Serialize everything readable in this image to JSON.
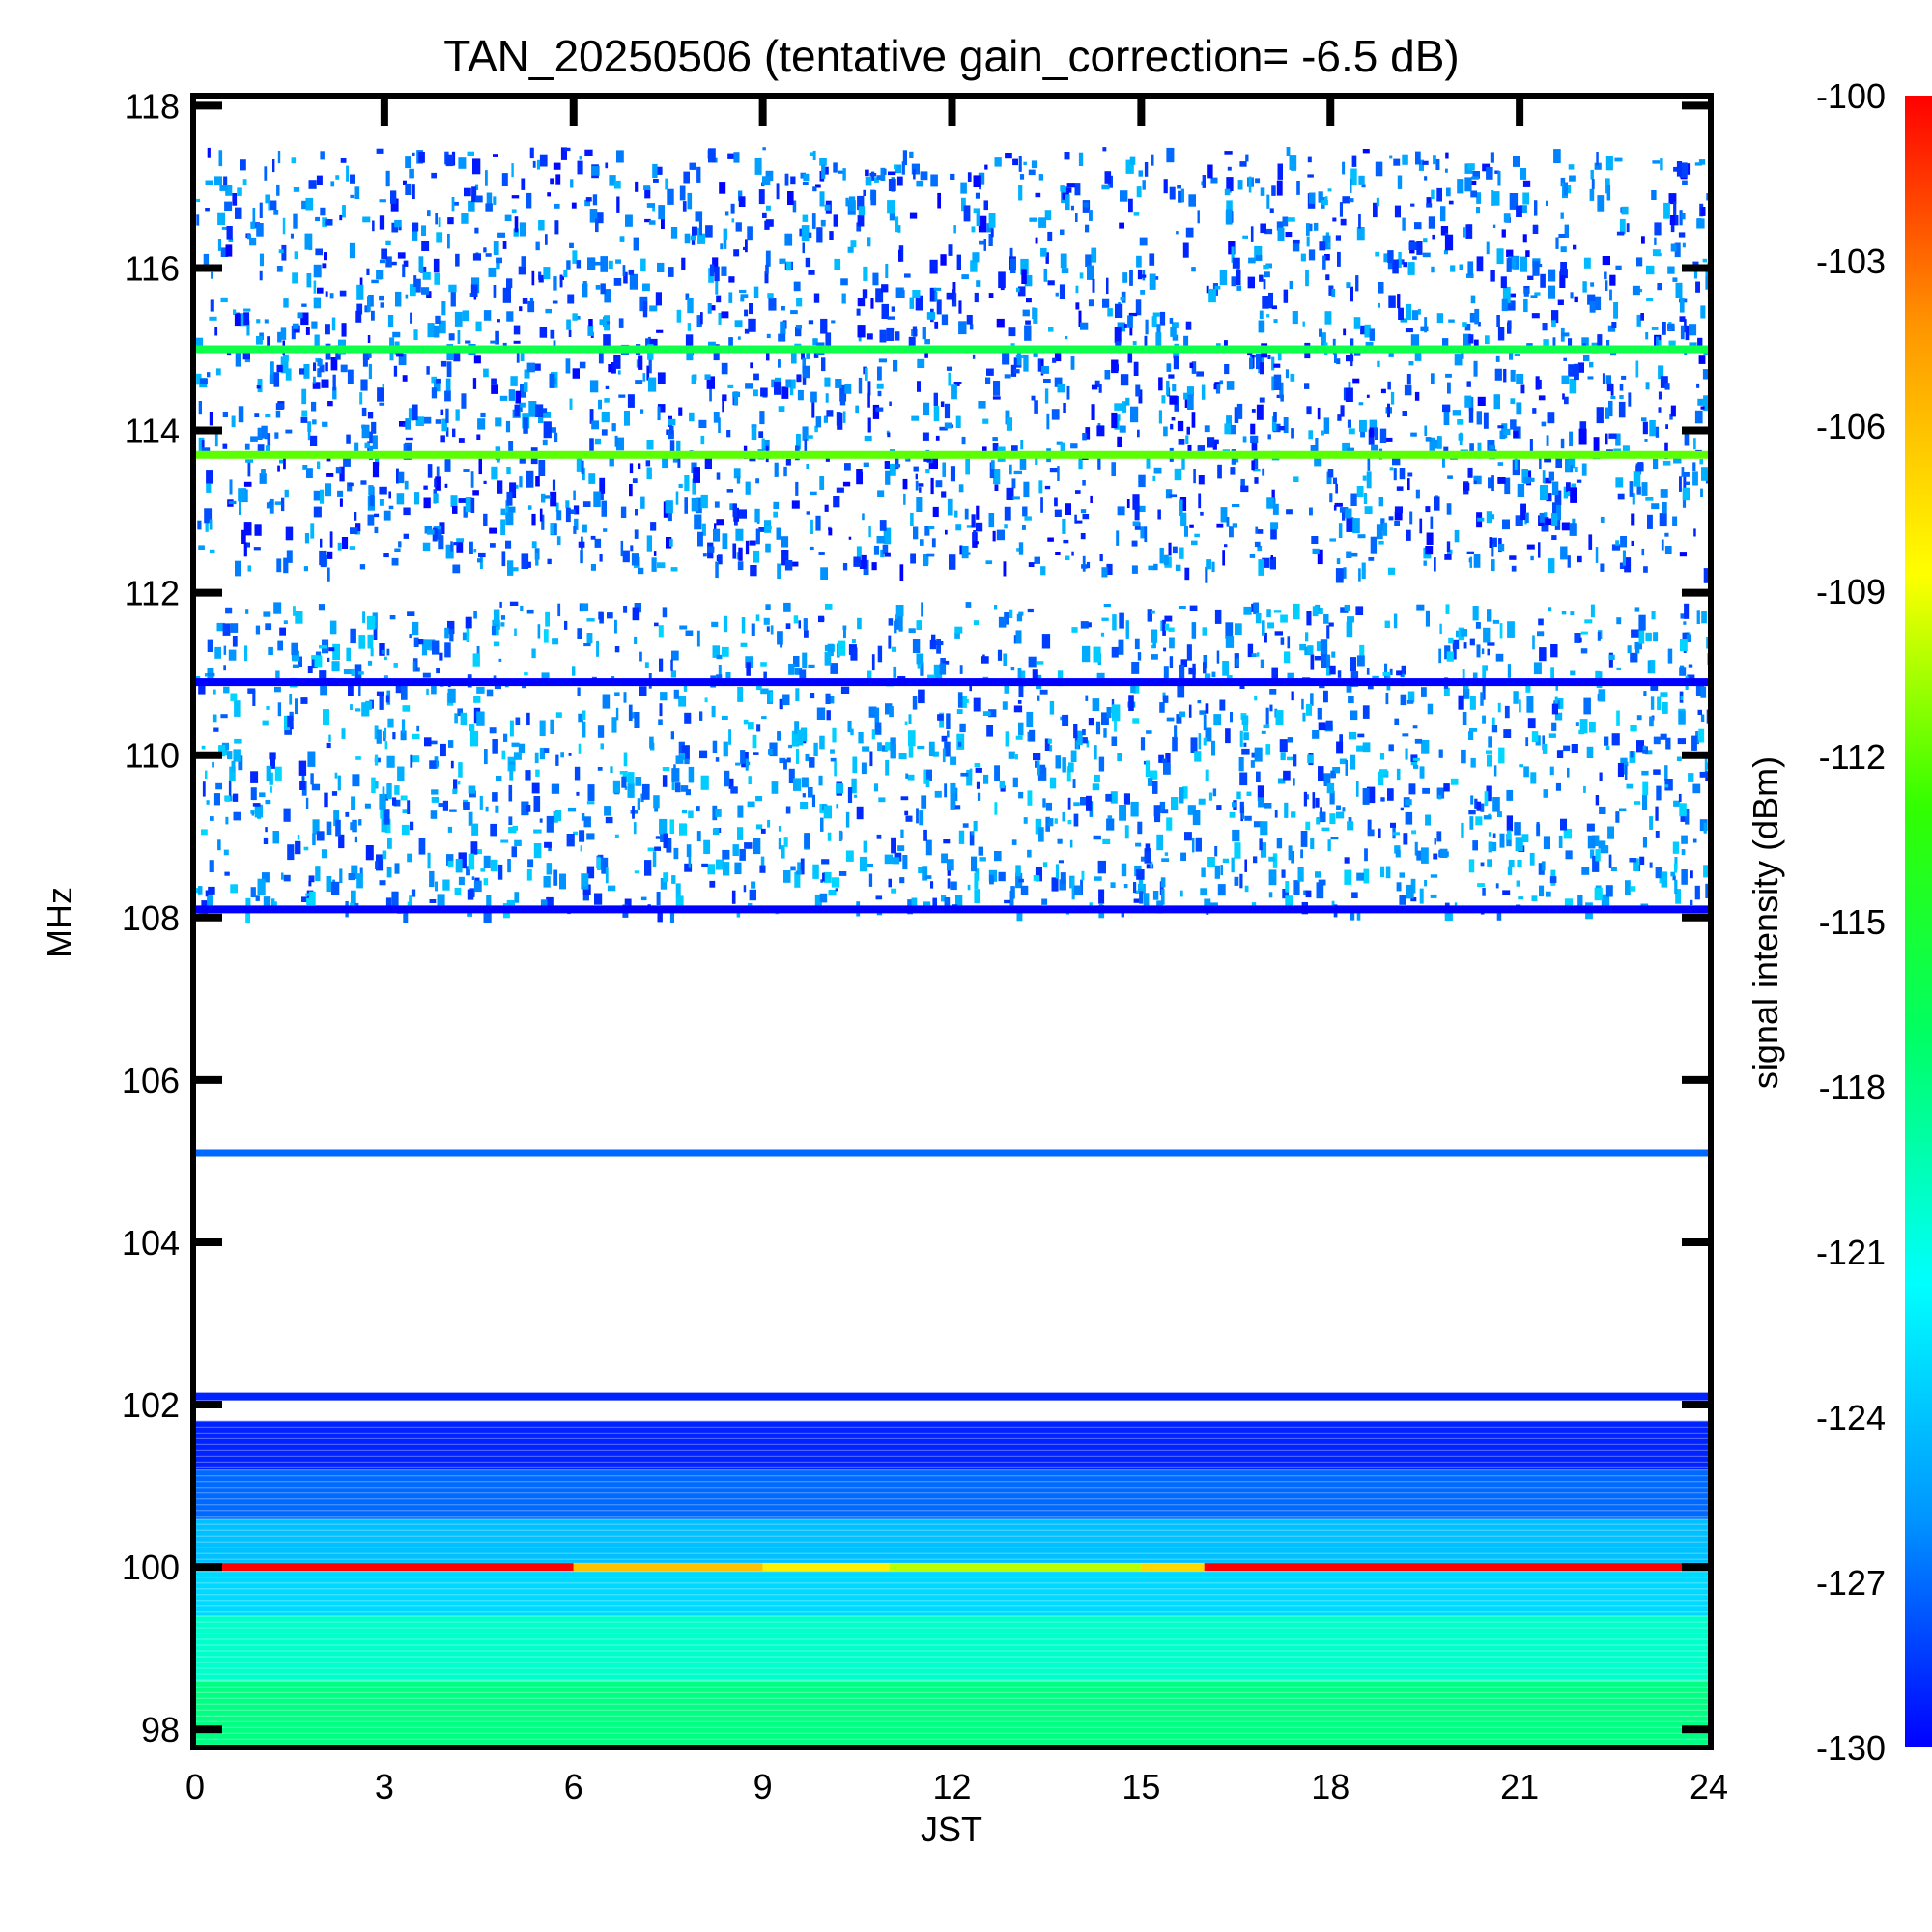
{
  "chart_data": {
    "type": "heatmap",
    "title": "TAN_20250506 (tentative gain_correction= -6.5 dB)",
    "xlabel": "JST",
    "ylabel": "MHz",
    "colorbar_label": "signal intensity (dBm)",
    "x_range": [
      0,
      24
    ],
    "y_range": [
      97.8,
      118.1
    ],
    "x_ticks": [
      "0",
      "3",
      "6",
      "9",
      "12",
      "15",
      "18",
      "21",
      "24"
    ],
    "x_tick_values": [
      0,
      3,
      6,
      9,
      12,
      15,
      18,
      21,
      24
    ],
    "y_ticks": [
      "98",
      "100",
      "102",
      "104",
      "106",
      "108",
      "110",
      "112",
      "114",
      "116",
      "118"
    ],
    "y_tick_values": [
      98,
      100,
      102,
      104,
      106,
      108,
      110,
      112,
      114,
      116,
      118
    ],
    "colorbar_ticks": [
      "-100",
      "-103",
      "-106",
      "-109",
      "-112",
      "-115",
      "-118",
      "-121",
      "-124",
      "-127",
      "-130"
    ],
    "colorbar_tick_values": [
      -100,
      -103,
      -106,
      -109,
      -112,
      -115,
      -118,
      -121,
      -124,
      -127,
      -130
    ],
    "colorbar_range": [
      -130,
      -100
    ],
    "colormap": "rainbow (blue = -130 dBm to red = -100 dBm)",
    "colormap_stops": [
      "#0000ff",
      "#0096ff",
      "#00ffff",
      "#00ff64",
      "#32ff00",
      "#ffff00",
      "#ff9600",
      "#ff0000"
    ],
    "continuous_signals": [
      {
        "freq_mhz": 100.0,
        "segments": [
          {
            "from": 0,
            "to": 6,
            "dbm": -100
          },
          {
            "from": 6,
            "to": 9,
            "dbm": -106
          },
          {
            "from": 9,
            "to": 11,
            "dbm": -108
          },
          {
            "from": 11,
            "to": 15,
            "dbm": -110
          },
          {
            "from": 15,
            "to": 16,
            "dbm": -107
          },
          {
            "from": 16,
            "to": 24,
            "dbm": -100
          }
        ]
      },
      {
        "freq_mhz": 102.1,
        "dbm": -129
      },
      {
        "freq_mhz": 105.1,
        "dbm": -127
      },
      {
        "freq_mhz": 113.7,
        "dbm": -112
      },
      {
        "freq_mhz": 115.0,
        "dbm": -116
      },
      {
        "freq_mhz": 110.9,
        "dbm": -130
      },
      {
        "freq_mhz": 108.1,
        "dbm": -130
      }
    ],
    "bands": [
      {
        "from_mhz": 97.8,
        "to_mhz": 98.6,
        "dbm": -118,
        "description": "green fill"
      },
      {
        "from_mhz": 98.6,
        "to_mhz": 99.4,
        "dbm": -120,
        "description": "green fill"
      },
      {
        "from_mhz": 99.4,
        "to_mhz": 99.95,
        "dbm": -123,
        "description": "cyan-green fill"
      },
      {
        "from_mhz": 100.05,
        "to_mhz": 100.6,
        "dbm": -124,
        "description": "cyan fill"
      },
      {
        "from_mhz": 100.6,
        "to_mhz": 101.2,
        "dbm": -127,
        "description": "light blue fill"
      },
      {
        "from_mhz": 101.2,
        "to_mhz": 101.8,
        "dbm": -129,
        "description": "blue fill"
      },
      {
        "from_mhz": 108.1,
        "to_mhz": 111.9,
        "dbm": -128,
        "description": "dense scattered blue"
      },
      {
        "from_mhz": 112.3,
        "to_mhz": 117.5,
        "dbm": -129,
        "description": "scattered blue"
      }
    ]
  }
}
